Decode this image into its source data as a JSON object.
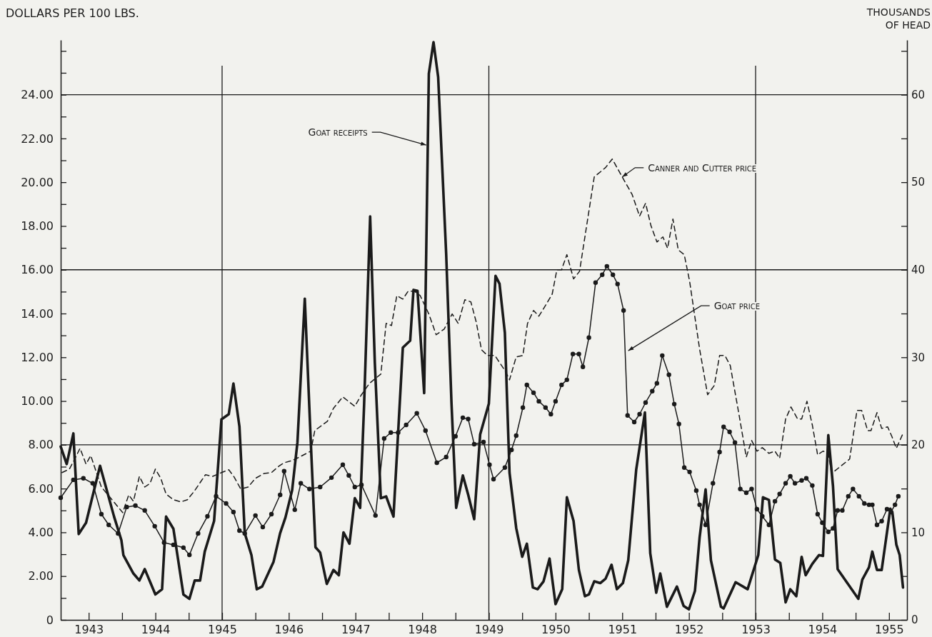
{
  "chart_data": {
    "type": "line",
    "ylabel": "DOLLARS PER 100 LBS.",
    "y2label": "THOUSANDS OF HEAD",
    "xlim": [
      1942.58,
      1955.27
    ],
    "xticks": [
      1943,
      {
        "value": 1943.5,
        "label": null
      },
      1944,
      {
        "value": 1944.5,
        "label": null
      },
      1945,
      {
        "value": 1945.5,
        "label": null
      },
      1946,
      {
        "value": 1946.5,
        "label": null
      },
      1947,
      {
        "value": 1947.5,
        "label": null
      },
      1948,
      {
        "value": 1948.5,
        "label": null
      },
      1949,
      {
        "value": 1949.5,
        "label": null
      },
      1950,
      {
        "value": 1950.5,
        "label": null
      },
      1951,
      {
        "value": 1951.5,
        "label": null
      },
      1952,
      {
        "value": 1952.5,
        "label": null
      },
      1953,
      {
        "value": 1953.5,
        "label": null
      },
      1954,
      {
        "value": 1954.5,
        "label": null
      },
      1955
    ],
    "ylim": [
      0,
      26.5
    ],
    "yticks": [
      0,
      {
        "value": 1,
        "label": null
      },
      {
        "value": 2,
        "label": "2.00"
      },
      {
        "value": 3,
        "label": null
      },
      {
        "value": 4,
        "label": "4.00"
      },
      {
        "value": 5,
        "label": null
      },
      {
        "value": 6,
        "label": "6.00"
      },
      {
        "value": 7,
        "label": null
      },
      {
        "value": 8,
        "label": "8.00"
      },
      {
        "value": 9,
        "label": null
      },
      {
        "value": 10,
        "label": "10.00"
      },
      {
        "value": 11,
        "label": null
      },
      {
        "value": 12,
        "label": "12.00"
      },
      {
        "value": 13,
        "label": null
      },
      {
        "value": 14,
        "label": "14.00"
      },
      {
        "value": 15,
        "label": null
      },
      {
        "value": 16,
        "label": "16.00"
      },
      {
        "value": 17,
        "label": null
      },
      {
        "value": 18,
        "label": "18.00"
      },
      {
        "value": 19,
        "label": null
      },
      {
        "value": 20,
        "label": "20.00"
      },
      {
        "value": 21,
        "label": null
      },
      {
        "value": 22,
        "label": "22.00"
      },
      {
        "value": 23,
        "label": null
      },
      {
        "value": 24,
        "label": "24.00"
      },
      {
        "value": 25,
        "label": null
      },
      {
        "value": 26,
        "label": null
      }
    ],
    "y2lim": [
      0,
      66.25
    ],
    "y2ticks": [
      0,
      {
        "value": 5,
        "label": null
      },
      10,
      {
        "value": 15,
        "label": null
      },
      20,
      {
        "value": 25,
        "label": null
      },
      30,
      {
        "value": 35,
        "label": null
      },
      40,
      {
        "value": 45,
        "label": null
      },
      50,
      {
        "value": 55,
        "label": null
      },
      60,
      {
        "value": 65,
        "label": null
      }
    ],
    "ref_lines": [
      {
        "axis": "y",
        "value": 8,
        "color": "#1a1a1a"
      },
      {
        "axis": "y",
        "value": 16,
        "color": "#1a1a1a"
      },
      {
        "axis": "y",
        "value": 24,
        "color": "#1a1a1a"
      },
      {
        "axis": "x",
        "value": 1945,
        "color": "#1a1a1a"
      },
      {
        "axis": "x",
        "value": 1949,
        "color": "#1a1a1a"
      },
      {
        "axis": "x",
        "value": 1953,
        "color": "#1a1a1a"
      }
    ],
    "annotations": [
      {
        "text": "Goat receipts",
        "x": 1948.06,
        "y": 21.7
      },
      {
        "text": "Canner and Cutter price",
        "x": 1951.0,
        "y": 20.24
      },
      {
        "text": "Goat price",
        "x": 1951.09,
        "y": 12.3
      }
    ],
    "series": [
      {
        "color": "#1a1a1a",
        "axis": "y2",
        "line_style": "solid",
        "marker": "none",
        "x": [
          1942.58,
          1942.67,
          1942.77,
          1942.85,
          1942.96,
          1943.17,
          1943.38,
          1943.49,
          1943.52,
          1943.67,
          1943.76,
          1943.84,
          1944.0,
          1944.1,
          1944.16,
          1944.27,
          1944.42,
          1944.51,
          1944.59,
          1944.67,
          1944.74,
          1944.88,
          1944.99,
          1945.1,
          1945.17,
          1945.26,
          1945.34,
          1945.44,
          1945.52,
          1945.6,
          1945.77,
          1945.87,
          1945.95,
          1946.05,
          1946.13,
          1946.24,
          1946.33,
          1946.4,
          1946.47,
          1946.57,
          1946.67,
          1946.75,
          1946.82,
          1946.91,
          1946.99,
          1947.07,
          1947.13,
          1947.22,
          1947.29,
          1947.38,
          1947.46,
          1947.57,
          1947.71,
          1947.82,
          1947.87,
          1947.93,
          1948.03,
          1948.1,
          1948.17,
          1948.24,
          1948.36,
          1948.44,
          1948.51,
          1948.61,
          1948.69,
          1948.78,
          1948.87,
          1949.0,
          1949.1,
          1949.16,
          1949.24,
          1949.31,
          1949.41,
          1949.5,
          1949.57,
          1949.66,
          1949.73,
          1949.82,
          1949.91,
          1950.0,
          1950.1,
          1950.17,
          1950.27,
          1950.35,
          1950.44,
          1950.5,
          1950.58,
          1950.67,
          1950.75,
          1950.84,
          1950.92,
          1951.01,
          1951.09,
          1951.21,
          1951.34,
          1951.42,
          1951.51,
          1951.57,
          1951.67,
          1951.82,
          1951.92,
          1952.0,
          1952.09,
          1952.16,
          1952.25,
          1952.33,
          1952.48,
          1952.52,
          1952.7,
          1952.88,
          1953.04,
          1953.11,
          1953.2,
          1953.29,
          1953.37,
          1953.45,
          1953.52,
          1953.61,
          1953.69,
          1953.75,
          1953.85,
          1953.95,
          1954.01,
          1954.09,
          1954.16,
          1954.23,
          1954.54,
          1954.6,
          1954.7,
          1954.75,
          1954.82,
          1954.89,
          1955.02,
          1955.05,
          1955.11,
          1955.16,
          1955.21
        ],
        "values": [
          19.8,
          17.8,
          21.3,
          9.8,
          11.1,
          17.6,
          11.8,
          9.1,
          7.4,
          5.3,
          4.5,
          5.8,
          2.9,
          3.5,
          11.8,
          10.4,
          2.9,
          2.4,
          4.5,
          4.5,
          7.8,
          11.3,
          22.9,
          23.5,
          27.0,
          22.1,
          9.9,
          7.4,
          3.5,
          3.8,
          6.6,
          9.9,
          11.7,
          14.8,
          20.3,
          36.7,
          20.3,
          8.3,
          7.7,
          4.1,
          5.7,
          5.1,
          10.0,
          8.7,
          13.9,
          12.8,
          24.7,
          46.1,
          29.4,
          13.9,
          14.1,
          11.8,
          31.1,
          31.9,
          37.7,
          37.6,
          25.9,
          62.4,
          66.0,
          62.0,
          41.8,
          24.7,
          12.8,
          16.5,
          14.3,
          11.5,
          21.2,
          24.7,
          39.3,
          38.4,
          32.8,
          16.8,
          10.5,
          7.2,
          8.7,
          3.7,
          3.5,
          4.4,
          7.0,
          1.8,
          3.5,
          14.0,
          11.3,
          5.7,
          2.7,
          2.9,
          4.4,
          4.2,
          4.7,
          6.3,
          3.5,
          4.2,
          6.8,
          17.2,
          23.7,
          7.6,
          3.1,
          5.3,
          1.5,
          3.8,
          1.6,
          1.2,
          3.3,
          9.4,
          14.9,
          6.8,
          1.5,
          1.3,
          4.3,
          3.5,
          7.4,
          14.0,
          13.7,
          6.9,
          6.5,
          2.0,
          3.5,
          2.7,
          7.2,
          5.1,
          6.4,
          7.4,
          7.3,
          21.1,
          15.3,
          5.8,
          2.4,
          4.6,
          6.0,
          7.8,
          5.7,
          5.7,
          12.7,
          12.3,
          8.6,
          7.4,
          3.7
        ]
      },
      {
        "color": "#1a1a1a",
        "line_style": "solid",
        "marker": "circle",
        "x": [
          1942.58,
          1942.77,
          1942.92,
          1943.06,
          1943.19,
          1943.3,
          1943.44,
          1943.57,
          1943.7,
          1943.84,
          1943.99,
          1944.13,
          1944.27,
          1944.42,
          1944.51,
          1944.64,
          1944.78,
          1944.91,
          1945.06,
          1945.17,
          1945.26,
          1945.34,
          1945.5,
          1945.61,
          1945.74,
          1945.87,
          1945.93,
          1946.09,
          1946.18,
          1946.31,
          1946.47,
          1946.64,
          1946.81,
          1946.9,
          1946.99,
          1947.09,
          1947.3,
          1947.43,
          1947.53,
          1947.64,
          1947.76,
          1947.92,
          1948.05,
          1948.22,
          1948.36,
          1948.5,
          1948.61,
          1948.69,
          1948.78,
          1948.92,
          1949.01,
          1949.07,
          1949.24,
          1949.34,
          1949.41,
          1949.51,
          1949.57,
          1949.67,
          1949.75,
          1949.85,
          1949.93,
          1950.0,
          1950.09,
          1950.17,
          1950.26,
          1950.35,
          1950.41,
          1950.5,
          1950.6,
          1950.7,
          1950.77,
          1950.86,
          1950.93,
          1951.02,
          1951.08,
          1951.18,
          1951.26,
          1951.35,
          1951.45,
          1951.52,
          1951.6,
          1951.7,
          1951.78,
          1951.85,
          1951.93,
          1952.01,
          1952.11,
          1952.16,
          1952.25,
          1952.36,
          1952.46,
          1952.52,
          1952.61,
          1952.69,
          1952.77,
          1952.86,
          1952.94,
          1953.02,
          1953.1,
          1953.2,
          1953.29,
          1953.36,
          1953.45,
          1953.52,
          1953.59,
          1953.69,
          1953.76,
          1953.85,
          1953.93,
          1954.0,
          1954.09,
          1954.16,
          1954.23,
          1954.3,
          1954.39,
          1954.46,
          1954.55,
          1954.63,
          1954.7,
          1954.75,
          1954.82,
          1954.89,
          1954.97,
          1955.03,
          1955.09,
          1955.14
        ],
        "values": [
          5.58,
          6.4,
          6.47,
          6.24,
          4.83,
          4.34,
          3.95,
          5.16,
          5.22,
          5.0,
          4.28,
          3.53,
          3.43,
          3.3,
          2.97,
          3.95,
          4.73,
          5.65,
          5.32,
          4.93,
          4.08,
          3.95,
          4.77,
          4.24,
          4.83,
          5.71,
          6.8,
          5.03,
          6.24,
          5.98,
          6.07,
          6.5,
          7.09,
          6.6,
          6.07,
          6.17,
          4.77,
          8.29,
          8.56,
          8.56,
          8.91,
          9.44,
          8.65,
          7.18,
          7.44,
          8.39,
          9.24,
          9.18,
          8.03,
          8.13,
          7.09,
          6.43,
          6.96,
          7.77,
          8.42,
          9.7,
          10.74,
          10.38,
          9.99,
          9.7,
          9.4,
          9.99,
          10.74,
          10.97,
          12.15,
          12.15,
          11.56,
          12.9,
          15.41,
          15.77,
          16.16,
          15.77,
          15.35,
          14.14,
          9.34,
          9.04,
          9.4,
          9.93,
          10.45,
          10.81,
          12.08,
          11.2,
          9.86,
          8.95,
          6.96,
          6.76,
          5.91,
          5.26,
          4.34,
          6.24,
          7.67,
          8.82,
          8.59,
          8.1,
          5.98,
          5.81,
          5.98,
          5.06,
          4.73,
          4.34,
          5.42,
          5.75,
          6.24,
          6.56,
          6.24,
          6.37,
          6.47,
          6.14,
          4.83,
          4.44,
          4.02,
          4.18,
          5.0,
          5.0,
          5.65,
          5.98,
          5.65,
          5.32,
          5.26,
          5.26,
          4.34,
          4.51,
          5.06,
          4.93,
          5.26,
          5.65
        ]
      },
      {
        "color": "#1a1a1a",
        "line_style": "dashed",
        "marker": "none",
        "x": [
          1942.6,
          1942.71,
          1942.79,
          1942.87,
          1942.96,
          1943.03,
          1943.19,
          1943.35,
          1943.51,
          1943.6,
          1943.67,
          1943.76,
          1943.84,
          1943.92,
          1944.0,
          1944.08,
          1944.16,
          1944.27,
          1944.38,
          1944.48,
          1944.59,
          1944.75,
          1944.86,
          1944.99,
          1945.1,
          1945.18,
          1945.28,
          1945.39,
          1945.5,
          1945.63,
          1945.74,
          1945.85,
          1945.93,
          1946.05,
          1946.16,
          1946.33,
          1946.39,
          1946.58,
          1946.67,
          1946.81,
          1946.99,
          1947.09,
          1947.21,
          1947.38,
          1947.46,
          1947.54,
          1947.62,
          1947.71,
          1947.79,
          1947.88,
          1947.97,
          1948.1,
          1948.21,
          1948.33,
          1948.45,
          1948.54,
          1948.64,
          1948.73,
          1948.81,
          1948.89,
          1948.98,
          1949.09,
          1949.24,
          1949.31,
          1949.41,
          1949.51,
          1949.58,
          1949.67,
          1949.75,
          1949.85,
          1949.95,
          1950.02,
          1950.09,
          1950.17,
          1950.27,
          1950.36,
          1950.58,
          1950.75,
          1950.85,
          1951.0,
          1951.15,
          1951.26,
          1951.35,
          1951.43,
          1951.52,
          1951.61,
          1951.68,
          1951.76,
          1951.84,
          1951.93,
          1952.01,
          1952.16,
          1952.28,
          1952.38,
          1952.46,
          1952.54,
          1952.62,
          1952.75,
          1952.86,
          1952.94,
          1953.02,
          1953.1,
          1953.2,
          1953.29,
          1953.36,
          1953.45,
          1953.53,
          1953.63,
          1953.69,
          1953.77,
          1953.85,
          1953.93,
          1954.01,
          1954.09,
          1954.14,
          1954.41,
          1954.52,
          1954.59,
          1954.68,
          1954.73,
          1954.82,
          1954.89,
          1954.98,
          1955.05,
          1955.11,
          1955.21
        ],
        "values": [
          6.73,
          6.89,
          7.35,
          7.84,
          7.12,
          7.51,
          6.07,
          5.49,
          4.9,
          5.71,
          5.42,
          6.56,
          6.07,
          6.24,
          6.89,
          6.47,
          5.75,
          5.49,
          5.39,
          5.49,
          5.91,
          6.63,
          6.56,
          6.73,
          6.86,
          6.53,
          5.98,
          6.07,
          6.47,
          6.69,
          6.73,
          7.02,
          7.18,
          7.28,
          7.44,
          7.71,
          8.65,
          9.08,
          9.67,
          10.19,
          9.76,
          10.29,
          10.81,
          11.23,
          13.55,
          13.45,
          14.82,
          14.66,
          15.02,
          15.02,
          14.82,
          13.98,
          13.03,
          13.29,
          13.98,
          13.55,
          14.63,
          14.53,
          13.62,
          12.34,
          12.08,
          12.08,
          11.4,
          10.97,
          12.02,
          12.08,
          13.55,
          14.14,
          13.88,
          14.37,
          14.89,
          16.0,
          16.0,
          16.69,
          15.58,
          15.93,
          20.24,
          20.67,
          21.06,
          20.24,
          19.43,
          18.45,
          19.04,
          18.02,
          17.27,
          17.5,
          16.98,
          18.32,
          16.91,
          16.69,
          15.48,
          12.38,
          10.29,
          10.71,
          12.08,
          12.08,
          11.62,
          9.4,
          7.44,
          8.2,
          7.71,
          7.87,
          7.61,
          7.71,
          7.38,
          9.18,
          9.73,
          9.18,
          9.18,
          9.99,
          8.91,
          7.54,
          7.71,
          7.61,
          6.69,
          7.35,
          9.57,
          9.57,
          8.65,
          8.65,
          9.47,
          8.75,
          8.82,
          8.33,
          7.84,
          8.52
        ]
      }
    ]
  }
}
